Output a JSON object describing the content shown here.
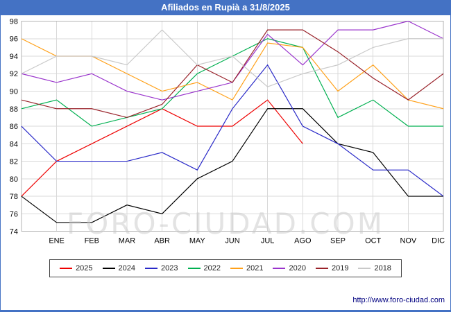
{
  "header": {
    "title": "Afiliados en Rupià a 31/8/2025",
    "background_color": "#4472c4"
  },
  "watermark": {
    "text": "FORO-CIUDAD.COM"
  },
  "footer": {
    "url": "http://www.foro-ciudad.com"
  },
  "chart_data": {
    "type": "line",
    "title": "Afiliados en Rupià a 31/8/2025",
    "x_axis": {
      "categories": [
        "",
        "ENE",
        "FEB",
        "MAR",
        "ABR",
        "MAY",
        "JUN",
        "JUL",
        "AGO",
        "SEP",
        "OCT",
        "NOV",
        "DIC"
      ],
      "note": "first data point sits on the y-axis and is unlabeled; 2025 series ends in AGO"
    },
    "y_axis": {
      "min": 74,
      "max": 98,
      "tick_step": 2,
      "ticks": [
        74,
        76,
        78,
        80,
        82,
        84,
        86,
        88,
        90,
        92,
        94,
        96,
        98
      ]
    },
    "grid": true,
    "legend_position": "bottom",
    "series": [
      {
        "name": "2025",
        "color": "#ee0000",
        "values": [
          78,
          82,
          84,
          86,
          88,
          86,
          86,
          89,
          84
        ]
      },
      {
        "name": "2024",
        "color": "#000000",
        "values": [
          78,
          75,
          75,
          77,
          76,
          80,
          82,
          88,
          88,
          84,
          83,
          78,
          78
        ]
      },
      {
        "name": "2023",
        "color": "#2929c8",
        "values": [
          86,
          82,
          82,
          82,
          83,
          81,
          88,
          93,
          86,
          84,
          81,
          81,
          78
        ]
      },
      {
        "name": "2022",
        "color": "#00b050",
        "values": [
          88,
          89,
          86,
          87,
          88,
          92,
          94,
          96,
          95,
          87,
          89,
          86,
          86
        ]
      },
      {
        "name": "2021",
        "color": "#ffa018",
        "values": [
          96,
          94,
          94,
          92,
          90,
          91,
          89,
          95.5,
          95,
          90,
          93,
          89,
          88
        ]
      },
      {
        "name": "2020",
        "color": "#9933cc",
        "values": [
          92,
          91,
          92,
          90,
          89,
          90,
          91,
          96.5,
          93,
          97,
          97,
          98,
          96
        ]
      },
      {
        "name": "2019",
        "color": "#99222a",
        "values": [
          89,
          88,
          88,
          87,
          88.5,
          93,
          91,
          97,
          97,
          94.5,
          91.5,
          89,
          92
        ]
      },
      {
        "name": "2018",
        "color": "#c9c9c9",
        "values": [
          92,
          94,
          94,
          93,
          97,
          93,
          94,
          90.5,
          92,
          93,
          95,
          96,
          96
        ]
      }
    ]
  }
}
